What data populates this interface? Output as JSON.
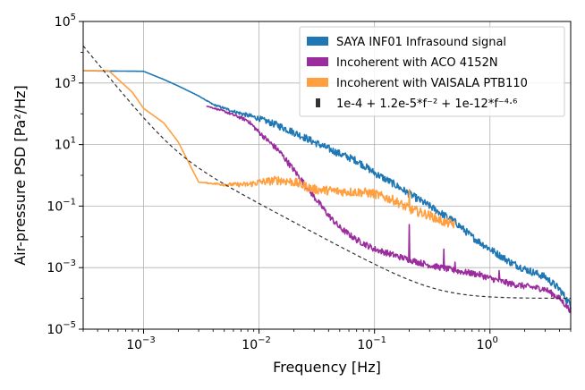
{
  "chart_data": {
    "type": "line",
    "xscale": "log",
    "yscale": "log",
    "xlim": [
      0.0003,
      5
    ],
    "ylim": [
      1e-05,
      100000
    ],
    "xlabel": "Frequency [Hz]",
    "ylabel": "Air-pressure PSD [Pa²/Hz]",
    "grid": true,
    "legend_position": "top-right",
    "x_ticks": [
      {
        "value": 0.001,
        "mantissa": "10",
        "exp": "−3"
      },
      {
        "value": 0.01,
        "mantissa": "10",
        "exp": "−2"
      },
      {
        "value": 0.1,
        "mantissa": "10",
        "exp": "−1"
      },
      {
        "value": 1,
        "mantissa": "10",
        "exp": "0"
      }
    ],
    "y_ticks": [
      {
        "value": 1e-05,
        "mantissa": "10",
        "exp": "−5"
      },
      {
        "value": 0.001,
        "mantissa": "10",
        "exp": "−3"
      },
      {
        "value": 0.1,
        "mantissa": "10",
        "exp": "−1"
      },
      {
        "value": 10,
        "mantissa": "10",
        "exp": "1"
      },
      {
        "value": 1000,
        "mantissa": "10",
        "exp": "3"
      },
      {
        "value": 100000,
        "mantissa": "10",
        "exp": "5"
      }
    ],
    "series": [
      {
        "name": "SAYA INF01 Infrasound signal",
        "color": "#1f77b4",
        "style": "solid",
        "noise_decades": 0.12,
        "points": [
          [
            0.0003,
            2500
          ],
          [
            0.001,
            2400
          ],
          [
            0.0015,
            1300
          ],
          [
            0.002,
            800
          ],
          [
            0.003,
            380
          ],
          [
            0.004,
            200
          ],
          [
            0.006,
            120
          ],
          [
            0.01,
            70
          ],
          [
            0.015,
            40
          ],
          [
            0.02,
            25
          ],
          [
            0.03,
            12
          ],
          [
            0.05,
            5
          ],
          [
            0.07,
            3
          ],
          [
            0.1,
            1.2
          ],
          [
            0.15,
            0.5
          ],
          [
            0.2,
            0.25
          ],
          [
            0.3,
            0.1
          ],
          [
            0.5,
            0.03
          ],
          [
            0.7,
            0.01
          ],
          [
            1,
            0.004
          ],
          [
            1.5,
            0.0015
          ],
          [
            2,
            0.0009
          ],
          [
            3,
            0.0005
          ],
          [
            4,
            0.0002
          ],
          [
            5,
            6e-05
          ]
        ]
      },
      {
        "name": "Incoherent with ACO 4152N",
        "color": "#9b2c9e",
        "style": "solid",
        "noise_decades": 0.1,
        "points": [
          [
            0.0035,
            180
          ],
          [
            0.005,
            120
          ],
          [
            0.008,
            60
          ],
          [
            0.01,
            25
          ],
          [
            0.015,
            6
          ],
          [
            0.02,
            1.5
          ],
          [
            0.03,
            0.2
          ],
          [
            0.04,
            0.05
          ],
          [
            0.05,
            0.02
          ],
          [
            0.07,
            0.008
          ],
          [
            0.1,
            0.004
          ],
          [
            0.15,
            0.0025
          ],
          [
            0.2,
            0.0018
          ],
          [
            0.3,
            0.0012
          ],
          [
            0.5,
            0.0008
          ],
          [
            0.8,
            0.0006
          ],
          [
            1,
            0.00045
          ],
          [
            1.5,
            0.0003
          ],
          [
            2,
            0.00025
          ],
          [
            3,
            0.0002
          ],
          [
            4,
            0.0001
          ],
          [
            5,
            4e-05
          ]
        ],
        "spikes": [
          [
            0.16,
            0.0012
          ],
          [
            0.2,
            0.025
          ],
          [
            0.22,
            0.0015
          ],
          [
            0.25,
            0.0009
          ],
          [
            0.4,
            0.004
          ],
          [
            0.5,
            0.0015
          ],
          [
            1.2,
            0.0008
          ]
        ]
      },
      {
        "name": "Incoherent with VAISALA PTB110",
        "color": "#ff9f40",
        "style": "solid",
        "noise_decades": 0.15,
        "points": [
          [
            0.0003,
            2500
          ],
          [
            0.0005,
            2500
          ],
          [
            0.0008,
            500
          ],
          [
            0.001,
            150
          ],
          [
            0.0015,
            50
          ],
          [
            0.002,
            12
          ],
          [
            0.003,
            0.6
          ],
          [
            0.005,
            0.5
          ],
          [
            0.008,
            0.5
          ],
          [
            0.01,
            0.6
          ],
          [
            0.015,
            0.7
          ],
          [
            0.02,
            0.6
          ],
          [
            0.03,
            0.35
          ],
          [
            0.05,
            0.3
          ],
          [
            0.08,
            0.28
          ],
          [
            0.1,
            0.25
          ],
          [
            0.15,
            0.15
          ],
          [
            0.2,
            0.08
          ],
          [
            0.3,
            0.05
          ],
          [
            0.4,
            0.03
          ],
          [
            0.5,
            0.025
          ]
        ],
        "spikes": [
          [
            0.2,
            0.35
          ]
        ]
      },
      {
        "name": "1e-4 + 1.2e-5*f⁻² + 1e-12*f⁻⁴·⁶",
        "color": "#333333",
        "style": "dashed",
        "formula": {
          "c0": 0.0001,
          "c1": 1.2e-05,
          "p1": -2,
          "c2": 1e-12,
          "p2": -4.6
        }
      }
    ]
  }
}
